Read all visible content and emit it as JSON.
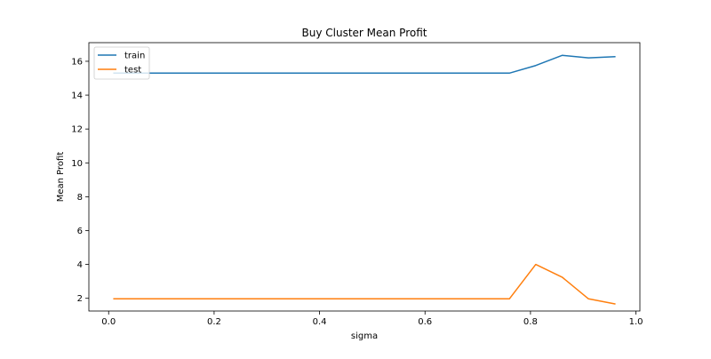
{
  "chart_data": {
    "type": "line",
    "title": "Buy Cluster Mean Profit",
    "xlabel": "sigma",
    "ylabel": "Mean Profit",
    "xlim": [
      -0.0375,
      1.0075
    ],
    "ylim": [
      1.25,
      17.1
    ],
    "xticks": [
      0.0,
      0.2,
      0.4,
      0.6,
      0.8,
      1.0
    ],
    "xtick_labels": [
      "0.0",
      "0.2",
      "0.4",
      "0.6",
      "0.8",
      "1.0"
    ],
    "yticks": [
      2,
      4,
      6,
      8,
      10,
      12,
      14,
      16
    ],
    "ytick_labels": [
      "2",
      "4",
      "6",
      "8",
      "10",
      "12",
      "14",
      "16"
    ],
    "grid": false,
    "legend_position": "top-left",
    "x": [
      0.01,
      0.06,
      0.11,
      0.16,
      0.21,
      0.26,
      0.31,
      0.36,
      0.41,
      0.46,
      0.51,
      0.56,
      0.61,
      0.66,
      0.71,
      0.76,
      0.81,
      0.86,
      0.91,
      0.96
    ],
    "series": [
      {
        "name": "train",
        "color": "#1f77b4",
        "values": [
          15.3,
          15.3,
          15.3,
          15.3,
          15.3,
          15.3,
          15.3,
          15.3,
          15.3,
          15.3,
          15.3,
          15.3,
          15.3,
          15.3,
          15.3,
          15.3,
          15.75,
          16.35,
          16.2,
          16.27
        ]
      },
      {
        "name": "test",
        "color": "#ff7f0e",
        "values": [
          1.97,
          1.97,
          1.97,
          1.97,
          1.97,
          1.97,
          1.97,
          1.97,
          1.97,
          1.97,
          1.97,
          1.97,
          1.97,
          1.97,
          1.97,
          1.97,
          4.0,
          3.25,
          1.97,
          1.67
        ]
      }
    ]
  }
}
